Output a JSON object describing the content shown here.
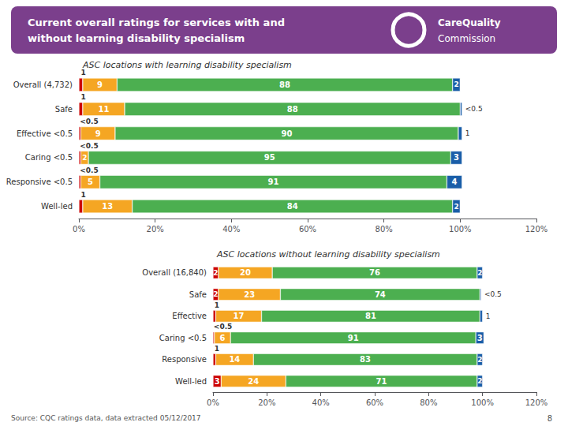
{
  "title": "Current overall ratings for services with and\nwithout learning disability specialism",
  "color": "#7B3F8C",
  "annotations": [
    "CareQuality",
    "Commission",
    "Source: CQC ratings data, data extracted 05/12/2017",
    "8"
  ],
  "chart_data": [
    {
      "type": "bar",
      "orientation": "horizontal",
      "stacked": true,
      "data_labels": true,
      "grid": false,
      "title": "ASC locations with learning disability specialism",
      "categories": [
        "Overall (4,732)",
        "Safe",
        "Effective <0.5",
        "Caring <0.5",
        "Responsive <0.5",
        "Well-led"
      ],
      "series": [
        {
          "color": "#CC0000",
          "values": [
            1,
            1,
            0.5,
            0.5,
            0.5,
            1
          ],
          "value_labels": [
            "1",
            "1",
            "<0.5",
            "<0.5",
            "<0.5",
            "1"
          ]
        },
        {
          "color": "#F5A623",
          "values": [
            9,
            11,
            9,
            2,
            5,
            13
          ],
          "value_labels": [
            "9",
            "11",
            "9",
            "2",
            "5",
            "13"
          ]
        },
        {
          "color": "#4CAF50",
          "values": [
            88,
            88,
            90,
            95,
            91,
            84
          ],
          "value_labels": [
            "88",
            "88",
            "90",
            "95",
            "91",
            "84"
          ]
        },
        {
          "color": "#1A5EA8",
          "values": [
            2,
            0.5,
            1,
            3,
            4,
            2
          ],
          "value_labels": [
            "2",
            "<0.5",
            "1",
            "3",
            "4",
            "2"
          ]
        }
      ],
      "xlim": [
        0,
        120
      ],
      "xticks": [
        {
          "value": 0,
          "label": "0%"
        },
        {
          "value": 20,
          "label": "20%"
        },
        {
          "value": 40,
          "label": "40%"
        },
        {
          "value": 60,
          "label": "60%"
        },
        {
          "value": 80,
          "label": "80%"
        },
        {
          "value": 100,
          "label": "100%"
        },
        {
          "value": 120,
          "label": "120%"
        }
      ]
    },
    {
      "type": "bar",
      "orientation": "horizontal",
      "stacked": true,
      "data_labels": true,
      "grid": false,
      "title": "ASC locations without learning disability specialism",
      "categories": [
        "Overall (16,840)",
        "Safe",
        "Effective",
        "Caring <0.5",
        "Responsive",
        "Well-led"
      ],
      "series": [
        {
          "color": "#CC0000",
          "values": [
            2,
            2,
            1,
            0.5,
            1,
            3
          ],
          "value_labels": [
            "2",
            "2",
            "1",
            "<0.5",
            "1",
            "3"
          ]
        },
        {
          "color": "#F5A623",
          "values": [
            20,
            23,
            17,
            6,
            14,
            24
          ],
          "value_labels": [
            "20",
            "23",
            "17",
            "6",
            "14",
            "24"
          ]
        },
        {
          "color": "#4CAF50",
          "values": [
            76,
            74,
            81,
            91,
            83,
            71
          ],
          "value_labels": [
            "76",
            "74",
            "81",
            "91",
            "83",
            "71"
          ]
        },
        {
          "color": "#1A5EA8",
          "values": [
            2,
            0.5,
            1,
            3,
            2,
            2
          ],
          "value_labels": [
            "2",
            "<0.5",
            "1",
            "3",
            "2",
            "2"
          ]
        }
      ],
      "xlim": [
        0,
        120
      ],
      "xticks": [
        {
          "value": 0,
          "label": "0%"
        },
        {
          "value": 20,
          "label": "20%"
        },
        {
          "value": 40,
          "label": "40%"
        },
        {
          "value": 60,
          "label": "60%"
        },
        {
          "value": 80,
          "label": "80%"
        },
        {
          "value": 100,
          "label": "100%"
        },
        {
          "value": 120,
          "label": "120%"
        }
      ]
    }
  ]
}
